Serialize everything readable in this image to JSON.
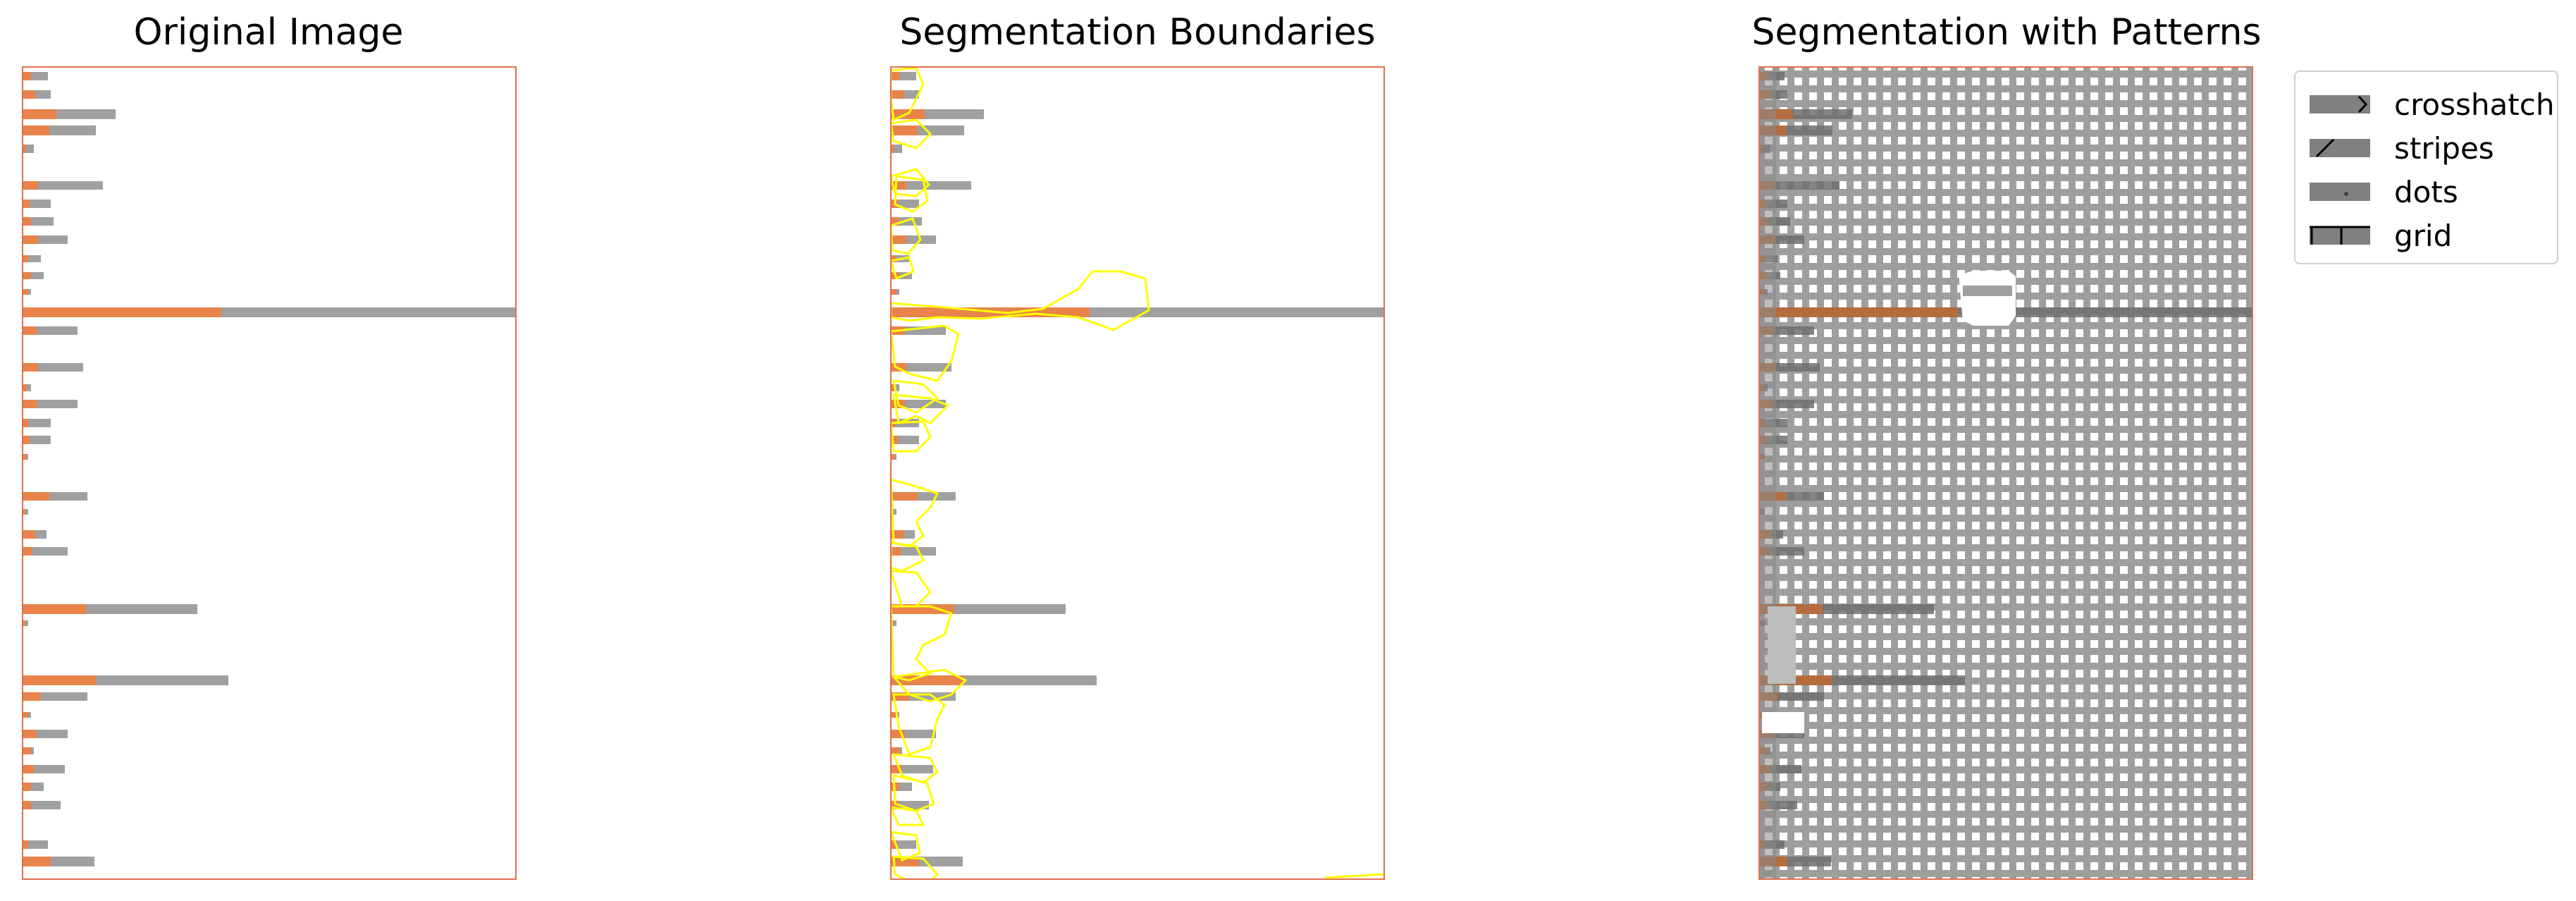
{
  "panels": [
    {
      "title": "Original Image"
    },
    {
      "title": "Segmentation Boundaries"
    },
    {
      "title": "Segmentation with Patterns"
    }
  ],
  "legend": [
    {
      "label": "crosshatch",
      "icon": "crosshatch-pattern-icon"
    },
    {
      "label": "stripes",
      "icon": "stripes-pattern-icon"
    },
    {
      "label": "dots",
      "icon": "dots-pattern-icon"
    },
    {
      "label": "grid",
      "icon": "grid-pattern-icon"
    }
  ],
  "colors": {
    "orange": "#e8834a",
    "gray": "#a0a0a0",
    "border": "#e07050",
    "boundary": "#ffff00",
    "pattern_bg": "#9e9e9e",
    "pattern_cell": "#ffffff"
  }
}
